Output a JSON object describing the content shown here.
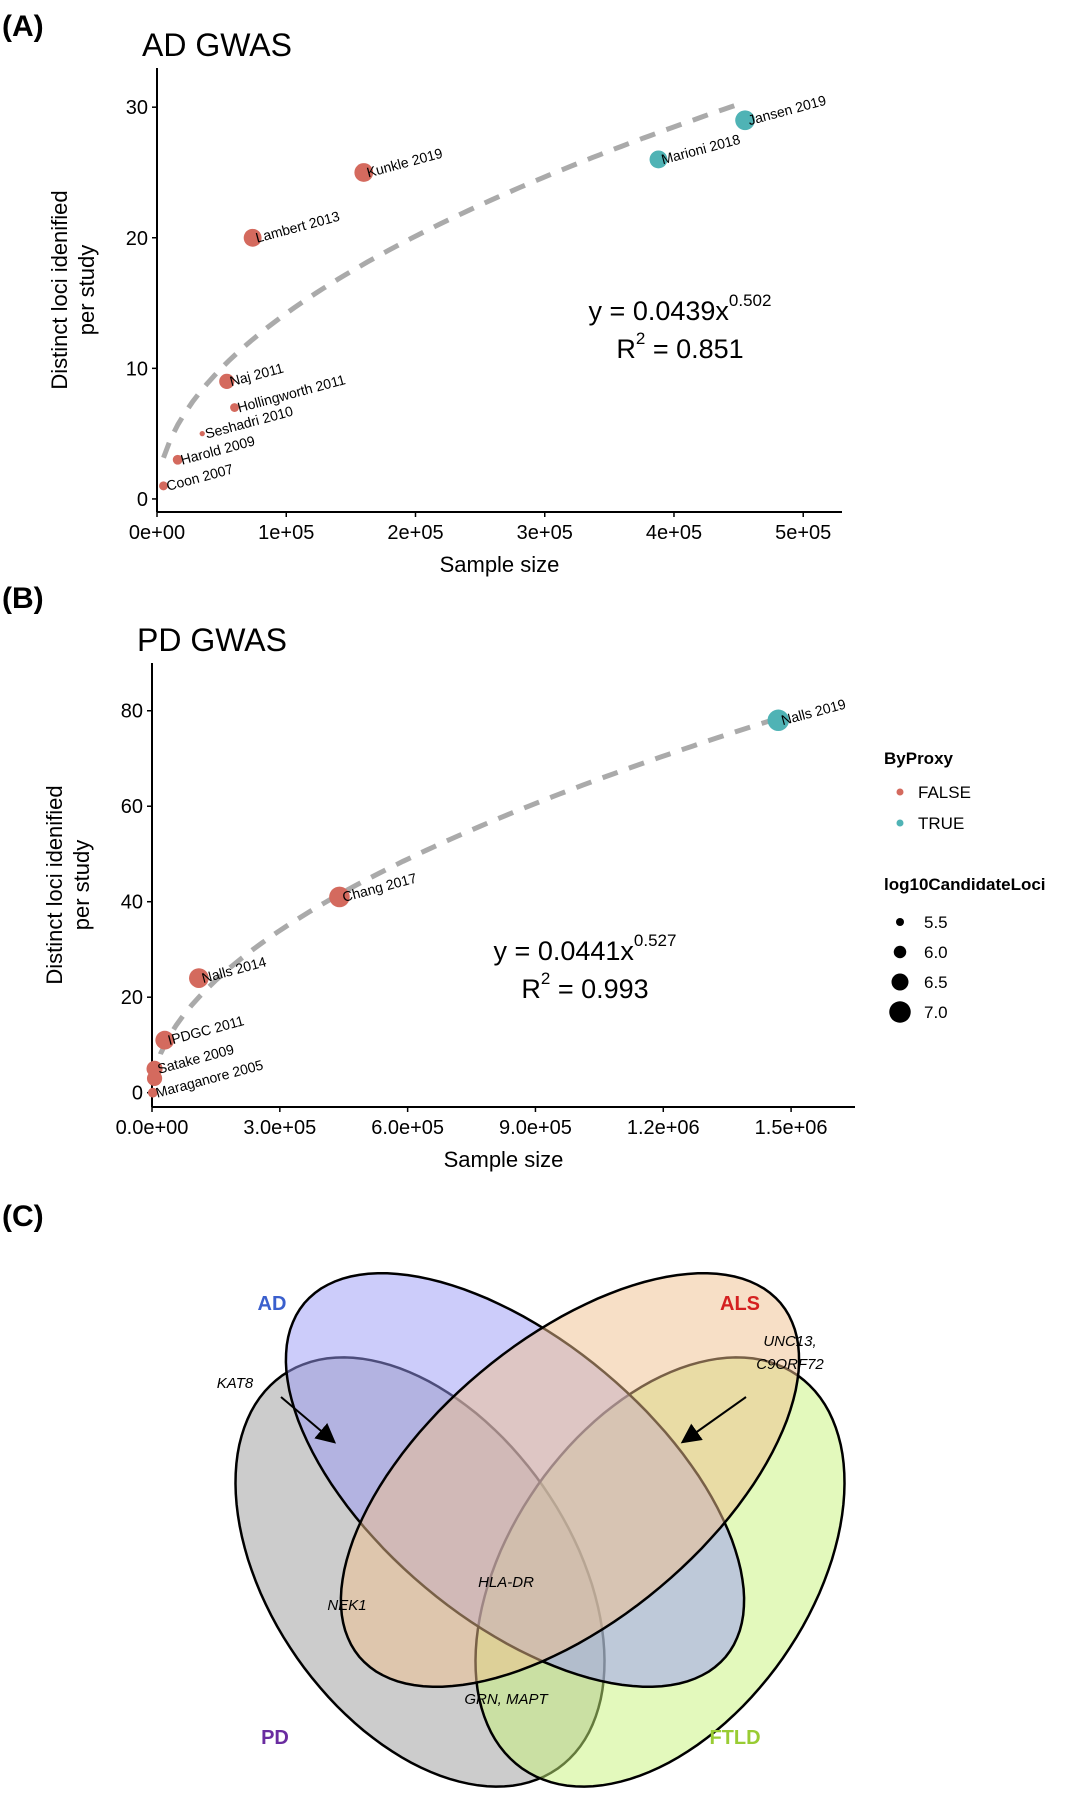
{
  "panels": {
    "a": "(A)",
    "b": "(B)",
    "c": "(C)"
  },
  "chart_data": [
    {
      "type": "scatter",
      "title": "AD GWAS",
      "xlabel": "Sample size",
      "ylabel": [
        "Distinct loci idenified",
        "per study"
      ],
      "xlim": [
        0,
        530000
      ],
      "ylim": [
        -1,
        33
      ],
      "xticks": [
        0,
        100000,
        200000,
        300000,
        400000,
        500000
      ],
      "xtick_labels": [
        "0e+00",
        "1e+05",
        "2e+05",
        "3e+05",
        "4e+05",
        "5e+05"
      ],
      "yticks": [
        0,
        10,
        20,
        30
      ],
      "ytick_labels": [
        "0",
        "10",
        "20",
        "30"
      ],
      "fit": {
        "a": 0.0439,
        "b": 0.502,
        "xrange": [
          5000,
          455000
        ],
        "eq_prefix": "y = 0.0439x",
        "eq_exp": "0.502",
        "r2_label": "R",
        "r2_exp": "2",
        "r2_value": "= 0.851"
      },
      "points": [
        {
          "label": "Coon 2007",
          "x": 5000,
          "y": 1,
          "proxy": false,
          "size": 5.6
        },
        {
          "label": "Harold 2009",
          "x": 16000,
          "y": 3,
          "proxy": false,
          "size": 5.7
        },
        {
          "label": "Seshadri 2010",
          "x": 35000,
          "y": 5,
          "proxy": false,
          "size": 5.2
        },
        {
          "label": "Hollingworth 2011",
          "x": 60000,
          "y": 7,
          "proxy": false,
          "size": 5.6
        },
        {
          "label": "Naj 2011",
          "x": 54000,
          "y": 9,
          "proxy": false,
          "size": 6.3
        },
        {
          "label": "Lambert 2013",
          "x": 74000,
          "y": 20,
          "proxy": false,
          "size": 6.6
        },
        {
          "label": "Kunkle 2019",
          "x": 160000,
          "y": 25,
          "proxy": false,
          "size": 6.7
        },
        {
          "label": "Marioni 2018",
          "x": 388000,
          "y": 26,
          "proxy": true,
          "size": 6.6
        },
        {
          "label": "Jansen 2019",
          "x": 455000,
          "y": 29,
          "proxy": true,
          "size": 6.8
        }
      ]
    },
    {
      "type": "scatter",
      "title": "PD GWAS",
      "xlabel": "Sample size",
      "ylabel": [
        "Distinct loci idenified",
        "per study"
      ],
      "xlim": [
        0,
        1650000
      ],
      "ylim": [
        -3,
        90
      ],
      "xticks": [
        0,
        300000,
        600000,
        900000,
        1200000,
        1500000
      ],
      "xtick_labels": [
        "0.0e+00",
        "3.0e+05",
        "6.0e+05",
        "9.0e+05",
        "1.2e+06",
        "1.5e+06"
      ],
      "yticks": [
        0,
        20,
        40,
        60,
        80
      ],
      "ytick_labels": [
        "0",
        "20",
        "40",
        "60",
        "80"
      ],
      "fit": {
        "a": 0.0441,
        "b": 0.527,
        "xrange": [
          2000,
          1470000
        ],
        "eq_prefix": "y = 0.0441x",
        "eq_exp": "0.527",
        "r2_label": "R",
        "r2_exp": "2",
        "r2_value": "= 0.993"
      },
      "points": [
        {
          "label": "Maraganore 2005",
          "x": 2000,
          "y": 0,
          "proxy": false,
          "size": 5.7
        },
        {
          "label": "",
          "x": 6000,
          "y": 3,
          "proxy": false,
          "size": 6.3
        },
        {
          "label": "Satake 2009",
          "x": 6000,
          "y": 5,
          "proxy": false,
          "size": 6.4
        },
        {
          "label": "IPDGC 2011",
          "x": 30000,
          "y": 11,
          "proxy": false,
          "size": 6.7
        },
        {
          "label": "Nalls 2014",
          "x": 110000,
          "y": 24,
          "proxy": false,
          "size": 6.8
        },
        {
          "label": "Chang 2017",
          "x": 440000,
          "y": 41,
          "proxy": false,
          "size": 6.9
        },
        {
          "label": "Nalls 2019",
          "x": 1470000,
          "y": 78,
          "proxy": true,
          "size": 7.0
        }
      ]
    }
  ],
  "legend": {
    "proxy_title": "ByProxy",
    "proxy_items": [
      {
        "label": "FALSE",
        "color": "#d46a5e"
      },
      {
        "label": "TRUE",
        "color": "#4fb3b5"
      }
    ],
    "size_title": "log10CandidateLoci",
    "size_items": [
      {
        "label": "5.5",
        "value": 5.5
      },
      {
        "label": "6.0",
        "value": 6.0
      },
      {
        "label": "6.5",
        "value": 6.5
      },
      {
        "label": "7.0",
        "value": 7.0
      }
    ]
  },
  "venn": {
    "sets": [
      {
        "label": "AD",
        "color": "#3a5fcd",
        "fill": "#9a9af5"
      },
      {
        "label": "ALS",
        "color": "#d42020",
        "fill": "#f0c08e"
      },
      {
        "label": "PD",
        "color": "#6a2ca0",
        "fill": "#9a9a9a"
      },
      {
        "label": "FTLD",
        "color": "#99cc33",
        "fill": "#c8f37a"
      }
    ],
    "genes": {
      "kat8": "KAT8",
      "unc13": "UNC13,",
      "c9orf72": "C9ORF72",
      "nek1": "NEK1",
      "hla": "HLA-DR",
      "grn": "GRN, MAPT"
    }
  }
}
